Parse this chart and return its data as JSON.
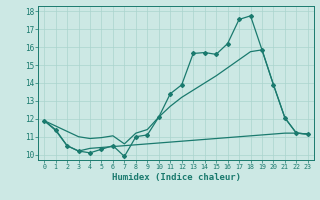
{
  "xlabel": "Humidex (Indice chaleur)",
  "background_color": "#cce8e4",
  "grid_color": "#aad4ce",
  "line_color": "#1a7a6e",
  "x_values": [
    0,
    1,
    2,
    3,
    4,
    5,
    6,
    7,
    8,
    9,
    10,
    11,
    12,
    13,
    14,
    15,
    16,
    17,
    18,
    19,
    20,
    21,
    22,
    23
  ],
  "line1_markers": [
    11.9,
    11.4,
    10.5,
    10.2,
    10.1,
    10.3,
    10.5,
    9.9,
    11.0,
    11.1,
    12.1,
    13.4,
    13.9,
    15.65,
    15.7,
    15.6,
    16.2,
    17.55,
    17.75,
    15.85,
    13.9,
    12.05,
    11.2,
    11.15
  ],
  "line2_straight": [
    11.9,
    11.6,
    11.3,
    11.0,
    10.9,
    10.95,
    11.05,
    10.6,
    11.2,
    11.4,
    12.1,
    12.7,
    13.2,
    13.6,
    14.0,
    14.4,
    14.85,
    15.3,
    15.75,
    15.85,
    13.9,
    12.05,
    11.2,
    11.15
  ],
  "line3_flat": [
    11.9,
    11.35,
    10.5,
    10.2,
    10.35,
    10.4,
    10.45,
    10.5,
    10.55,
    10.6,
    10.65,
    10.7,
    10.75,
    10.8,
    10.85,
    10.9,
    10.95,
    11.0,
    11.05,
    11.1,
    11.15,
    11.2,
    11.2,
    11.15
  ],
  "ylim": [
    9.7,
    18.3
  ],
  "xlim": [
    -0.5,
    23.5
  ]
}
